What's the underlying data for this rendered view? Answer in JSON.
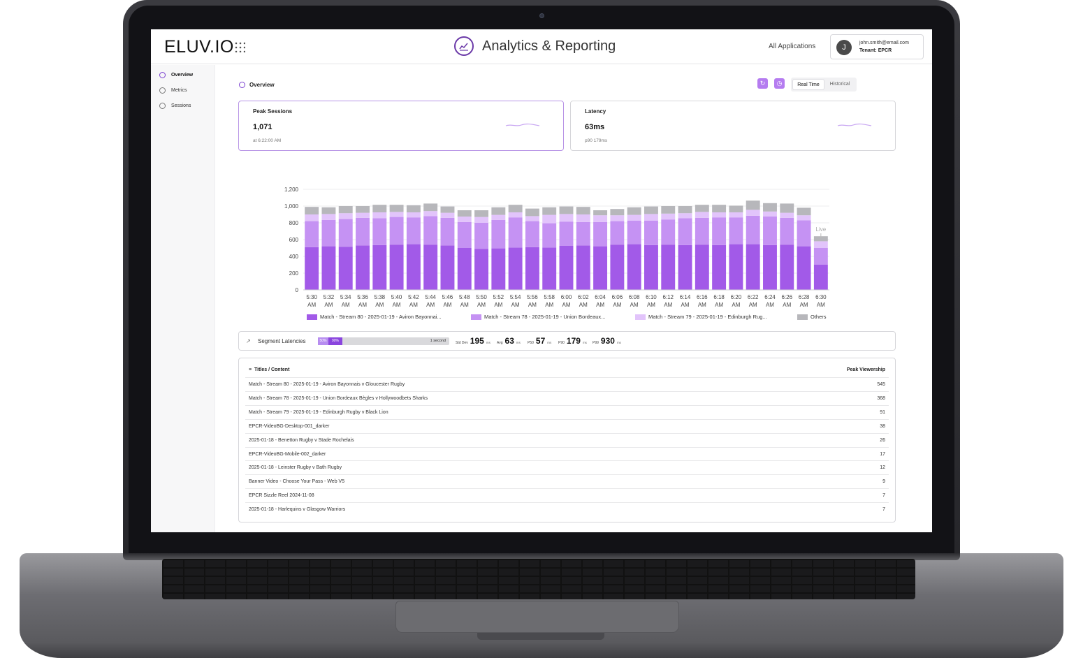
{
  "header": {
    "logo": "ELUV.IO",
    "app_title": "Analytics & Reporting",
    "all_apps": "All Applications",
    "user": {
      "initial": "J",
      "email": "john.smith@email.com",
      "tenant": "Tenant: EPCR"
    }
  },
  "sidebar": {
    "items": [
      {
        "label": "Overview",
        "active": true,
        "icon": "gauge-icon"
      },
      {
        "label": "Metrics",
        "active": false,
        "icon": "pie-chart-icon"
      },
      {
        "label": "Sessions",
        "active": false,
        "icon": "users-icon"
      }
    ]
  },
  "overview": {
    "label": "Overview",
    "toggle": {
      "real_time": "Real Time",
      "historical": "Historical",
      "selected": "Real Time"
    }
  },
  "cards": {
    "peak": {
      "title": "Peak Sessions",
      "value": "1,071",
      "sub": "at 6:22:00 AM"
    },
    "latency": {
      "title": "Latency",
      "value": "63ms",
      "sub": "p90 179ms"
    }
  },
  "chart_data": {
    "type": "bar",
    "stacked": true,
    "categories": [
      "5:30 AM",
      "5:32 AM",
      "5:34 AM",
      "5:36 AM",
      "5:38 AM",
      "5:40 AM",
      "5:42 AM",
      "5:44 AM",
      "5:46 AM",
      "5:48 AM",
      "5:50 AM",
      "5:52 AM",
      "5:54 AM",
      "5:56 AM",
      "5:58 AM",
      "6:00 AM",
      "6:02 AM",
      "6:04 AM",
      "6:06 AM",
      "6:08 AM",
      "6:10 AM",
      "6:12 AM",
      "6:14 AM",
      "6:16 AM",
      "6:18 AM",
      "6:20 AM",
      "6:22 AM",
      "6:24 AM",
      "6:26 AM",
      "6:28 AM",
      "6:30 AM"
    ],
    "ylim": [
      0,
      1200
    ],
    "yticks": [
      0,
      200,
      400,
      600,
      800,
      1000,
      1200
    ],
    "ytick_labels": [
      "0",
      "200",
      "400",
      "600",
      "800",
      "1,000",
      "1,200"
    ],
    "series": [
      {
        "name": "Match - Stream 80 - 2025-01-19 - Aviron Bayonnai...",
        "color": "#a25ae8",
        "values": [
          510,
          520,
          515,
          530,
          535,
          540,
          545,
          540,
          530,
          500,
          490,
          495,
          505,
          510,
          505,
          525,
          530,
          520,
          540,
          545,
          535,
          540,
          535,
          540,
          535,
          545,
          545,
          535,
          540,
          520,
          300
        ]
      },
      {
        "name": "Match - Stream 78 - 2025-01-19 - Union Bordeaux...",
        "color": "#c592f3",
        "values": [
          310,
          315,
          330,
          330,
          320,
          330,
          320,
          340,
          330,
          310,
          310,
          340,
          360,
          310,
          290,
          290,
          280,
          290,
          280,
          280,
          290,
          300,
          320,
          320,
          330,
          320,
          340,
          340,
          320,
          310,
          200
        ]
      },
      {
        "name": "Match - Stream 79 - 2025-01-19 - Edinburgh Rug...",
        "color": "#e2c4fb",
        "values": [
          80,
          70,
          70,
          60,
          70,
          60,
          60,
          60,
          60,
          65,
          70,
          60,
          60,
          60,
          100,
          90,
          90,
          80,
          70,
          70,
          80,
          70,
          60,
          70,
          60,
          60,
          70,
          60,
          60,
          60,
          80
        ]
      },
      {
        "name": "Others",
        "color": "#b7b7bb",
        "values": [
          90,
          80,
          85,
          80,
          90,
          85,
          85,
          90,
          75,
          75,
          80,
          90,
          90,
          90,
          90,
          90,
          90,
          60,
          75,
          90,
          90,
          90,
          85,
          85,
          90,
          80,
          110,
          100,
          110,
          90,
          60
        ]
      }
    ],
    "annotation": "Live",
    "grid": true,
    "legend": "bottom"
  },
  "segment": {
    "title": "Segment Latencies",
    "bar_p50": "50%",
    "bar_p90": "90%",
    "bar_label": "1 second",
    "stats": [
      {
        "label": "Std Dev",
        "value": "195",
        "unit": "ms"
      },
      {
        "label": "Avg",
        "value": "63",
        "unit": "ms"
      },
      {
        "label": "P50",
        "value": "57",
        "unit": "ms"
      },
      {
        "label": "P90",
        "value": "179",
        "unit": "ms"
      },
      {
        "label": "P99",
        "value": "930",
        "unit": "ms"
      }
    ]
  },
  "table": {
    "col_title": "Titles / Content",
    "col_value": "Peak Viewership",
    "rows": [
      {
        "title": "Match - Stream 80 - 2025-01-19 - Aviron Bayonnais v Gloucester Rugby",
        "value": "545"
      },
      {
        "title": "Match - Stream 78 - 2025-01-19 - Union Bordeaux Bègles v Hollywoodbets Sharks",
        "value": "368"
      },
      {
        "title": "Match - Stream 79 - 2025-01-19 - Edinburgh Rugby v Black Lion",
        "value": "91"
      },
      {
        "title": "EPCR-VideoBG-Desktop-001_darker",
        "value": "38"
      },
      {
        "title": "2025-01-18 - Benetton Rugby v Stade Rochelais",
        "value": "26"
      },
      {
        "title": "EPCR-VideoBG-Mobile-002_darker",
        "value": "17"
      },
      {
        "title": "2025-01-18 - Leinster Rugby v Bath Rugby",
        "value": "12"
      },
      {
        "title": "Banner Video - Choose Your Pass - Web V5",
        "value": "9"
      },
      {
        "title": "EPCR Sizzle Reel 2024-11-08",
        "value": "7"
      },
      {
        "title": "2025-01-18 - Harlequins v Glasgow Warriors",
        "value": "7"
      }
    ]
  }
}
